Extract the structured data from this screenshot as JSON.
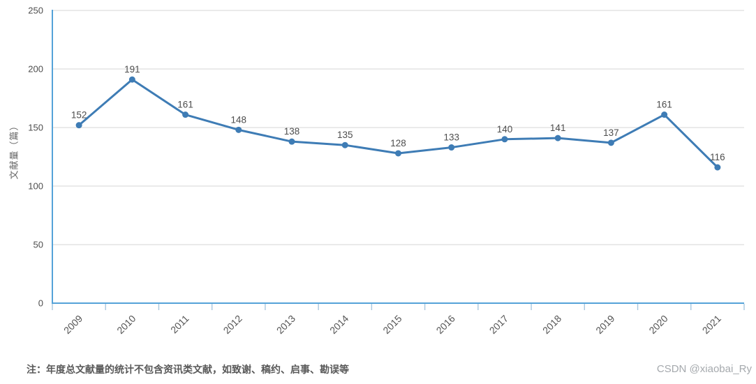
{
  "chart_data": {
    "type": "line",
    "title": "",
    "x": [
      "2009",
      "2010",
      "2011",
      "2012",
      "2013",
      "2014",
      "2015",
      "2016",
      "2017",
      "2018",
      "2019",
      "2020",
      "2021"
    ],
    "series": [
      {
        "name": "文献量",
        "values": [
          152,
          191,
          161,
          148,
          138,
          135,
          128,
          133,
          140,
          141,
          137,
          161,
          116
        ]
      }
    ],
    "xlabel": "",
    "ylabel": "文献量（篇）",
    "ylim": [
      0,
      250
    ],
    "yticks": [
      0,
      50,
      100,
      150,
      200,
      250
    ],
    "grid": true,
    "legend_position": "none",
    "data_labels_shown": true,
    "x_label_rotation_deg": -45,
    "colors": {
      "line": "#3e7cb5",
      "marker": "#3e7cb5",
      "axis_line": "#54a2d8",
      "gridline": "#e3e3e3",
      "tick_mark": "#a9c7de",
      "tick_label": "#4d4d4d",
      "axis_title": "#666666"
    }
  },
  "footnote": "注：年度总文献量的统计不包含资讯类文献，如致谢、稿约、启事、勘误等",
  "watermark": "CSDN @xiaobai_Ry"
}
